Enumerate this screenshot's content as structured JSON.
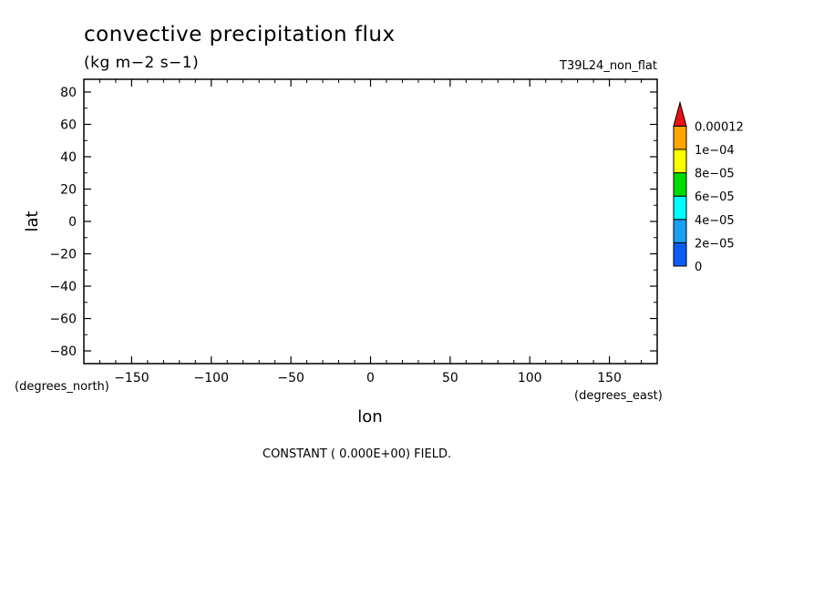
{
  "chart_data": {
    "type": "heatmap",
    "title": "convective precipitation flux",
    "units": "(kg m−2 s−1)",
    "dataset_label": "T39L24_non_flat",
    "xlabel": "lon",
    "ylabel": "lat",
    "x_units": "(degrees_east)",
    "y_units": "(degrees_north)",
    "xlim": [
      -180,
      180
    ],
    "ylim": [
      -87.86,
      87.86
    ],
    "x_ticks": [
      -150,
      -100,
      -50,
      0,
      50,
      100,
      150
    ],
    "x_tick_labels": [
      "−150",
      "−100",
      "−50",
      "0",
      "50",
      "100",
      "150"
    ],
    "y_ticks": [
      80,
      60,
      40,
      20,
      0,
      -20,
      -40,
      -60,
      -80
    ],
    "y_tick_labels": [
      "80",
      "60",
      "40",
      "20",
      "0",
      "−20",
      "−40",
      "−60",
      "−80"
    ],
    "x_minor_step": 10,
    "y_minor_step": 10,
    "grid": false,
    "note": "CONSTANT ( 0.000E+00) FIELD.",
    "colorbar": {
      "levels": [
        "0",
        "2e−05",
        "4e−05",
        "6e−05",
        "8e−05",
        "1e−04",
        "0.00012"
      ],
      "colors": [
        "#0b5cf5",
        "#1aa0f0",
        "#00ffff",
        "#00dd00",
        "#ffff00",
        "#ffa500",
        "#ee1111"
      ]
    }
  }
}
